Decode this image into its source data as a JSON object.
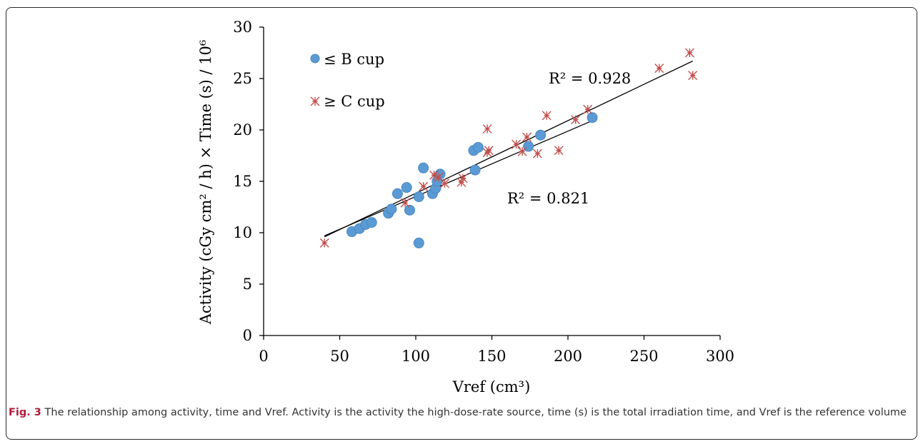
{
  "figure": {
    "caption_label": "Fig. 3",
    "caption_text": "The relationship among activity, time and Vref. Activity is the activity the high-dose-rate source, time (s) is the total irradiation time, and Vref is the reference volume"
  },
  "chart_data": {
    "type": "scatter",
    "title": "",
    "xlabel": "Vref (cm³)",
    "ylabel": "Activity (cGy cm² / h) × Time (s) / 10⁶",
    "xlim": [
      0,
      300
    ],
    "ylim": [
      0,
      30
    ],
    "xticks": [
      0,
      50,
      100,
      150,
      200,
      250,
      300
    ],
    "yticks": [
      0,
      5,
      10,
      15,
      20,
      25,
      30
    ],
    "grid": false,
    "legend_position": "top-left",
    "series": [
      {
        "name": "≤ B cup",
        "marker": "circle",
        "color": "#5b9bd5",
        "x": [
          58,
          63,
          67,
          71,
          82,
          84,
          88,
          94,
          96,
          102,
          102,
          105,
          111,
          113,
          114,
          116,
          138,
          139,
          141,
          174,
          182,
          216
        ],
        "y": [
          10.1,
          10.4,
          10.8,
          11.0,
          11.9,
          12.3,
          13.8,
          14.4,
          12.2,
          13.5,
          9.0,
          16.3,
          13.8,
          14.3,
          15.0,
          15.7,
          18.0,
          16.1,
          18.3,
          18.4,
          19.5,
          21.2
        ],
        "r2": "R² = 0.821",
        "trend": [
          [
            40,
            9.7
          ],
          [
            216,
            20.9
          ]
        ]
      },
      {
        "name": "≥ C cup",
        "marker": "asterisk",
        "color": "#c0504d",
        "x": [
          40,
          93,
          105,
          112,
          115,
          119,
          130,
          131,
          147,
          148,
          147,
          166,
          170,
          173,
          180,
          186,
          194,
          205,
          213,
          260,
          280,
          282
        ],
        "y": [
          9.0,
          12.9,
          14.5,
          15.6,
          15.4,
          14.8,
          14.9,
          15.3,
          20.1,
          18.0,
          17.8,
          18.6,
          17.9,
          19.3,
          17.7,
          21.4,
          18.0,
          21.0,
          22.0,
          26.0,
          27.5,
          25.3
        ],
        "r2": "R² = 0.928",
        "trend": [
          [
            40,
            9.6
          ],
          [
            282,
            26.7
          ]
        ]
      }
    ],
    "annotations": [
      "R² = 0.928",
      "R² = 0.821"
    ]
  },
  "colors": {
    "axis": "#000000",
    "caption_label": "#b11a3b",
    "caption_text": "#333333"
  }
}
